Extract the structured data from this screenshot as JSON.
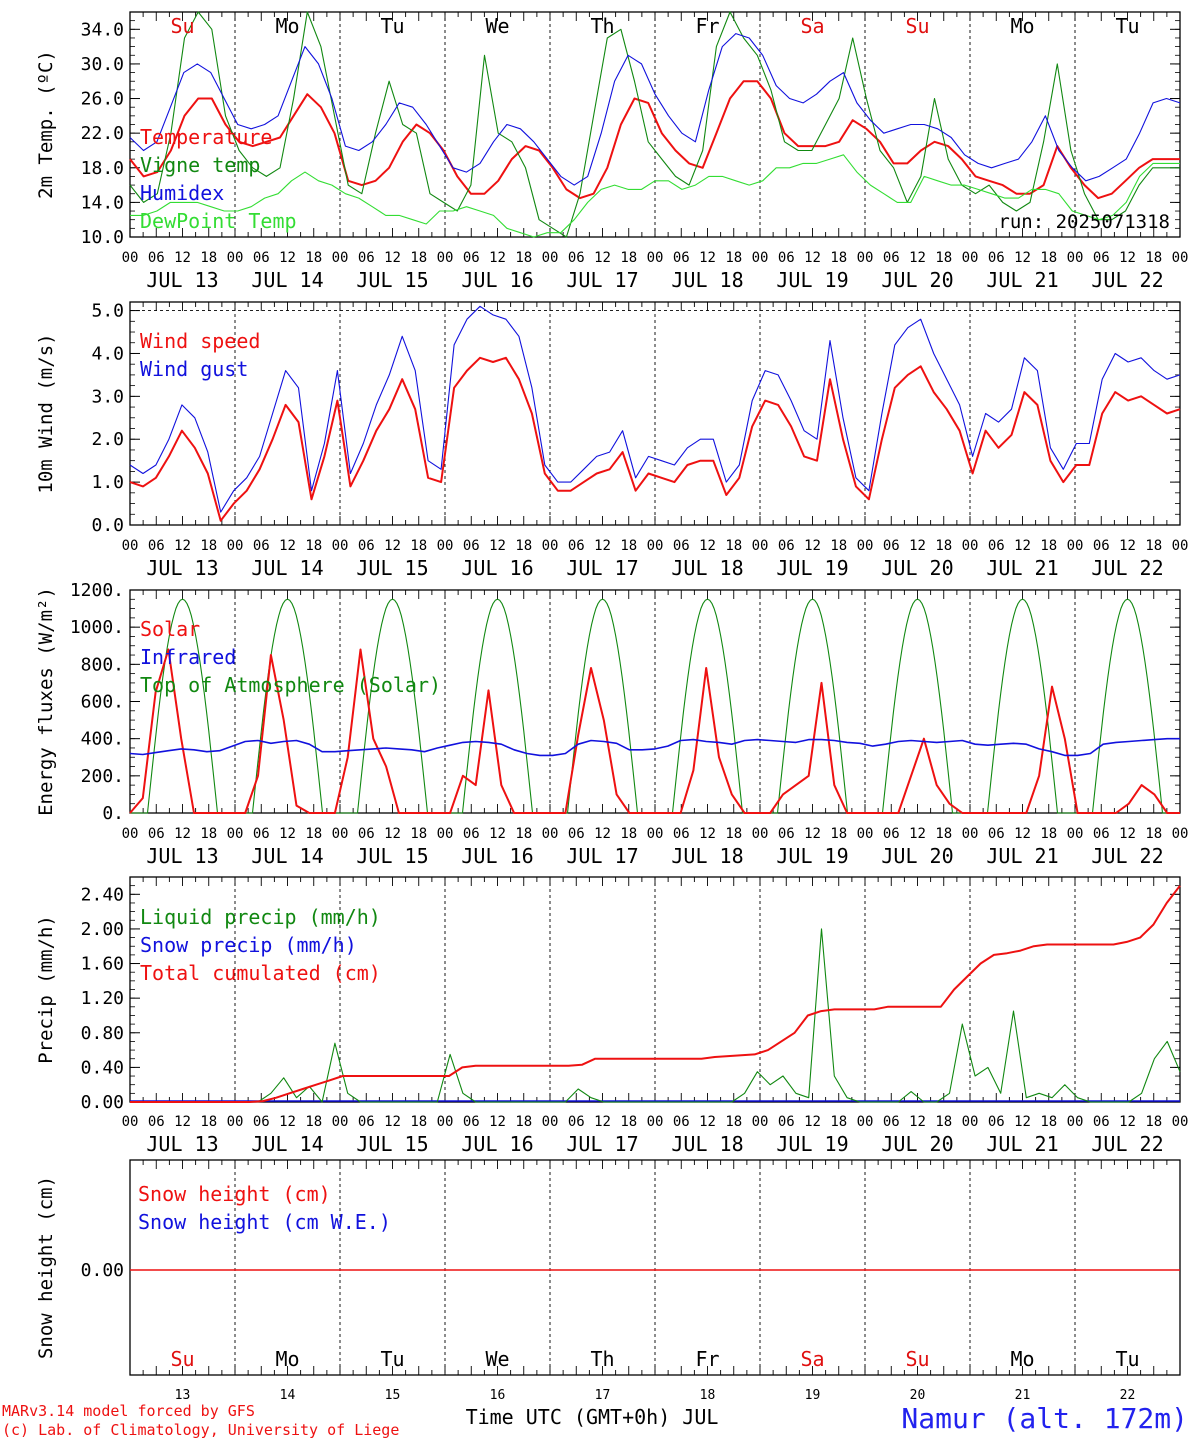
{
  "days": [
    "JUL 13",
    "JUL 14",
    "JUL 15",
    "JUL 16",
    "JUL 17",
    "JUL 18",
    "JUL 19",
    "JUL 20",
    "JUL 21",
    "JUL 22"
  ],
  "dow": [
    {
      "label": "Su",
      "color": "#e01010"
    },
    {
      "label": "Mo",
      "color": "#000000"
    },
    {
      "label": "Tu",
      "color": "#000000"
    },
    {
      "label": "We",
      "color": "#000000"
    },
    {
      "label": "Th",
      "color": "#000000"
    },
    {
      "label": "Fr",
      "color": "#000000"
    },
    {
      "label": "Sa",
      "color": "#e01010"
    },
    {
      "label": "Su",
      "color": "#e01010"
    },
    {
      "label": "Mo",
      "color": "#000000"
    },
    {
      "label": "Tu",
      "color": "#000000"
    }
  ],
  "hour_ticks": [
    "00",
    "06",
    "12",
    "18"
  ],
  "end_tick": "00",
  "bottom_day_numbers": [
    "13",
    "14",
    "15",
    "16",
    "17",
    "18",
    "19",
    "20",
    "21",
    "22"
  ],
  "run_label": "run: 2025071318",
  "footer": {
    "model": "MARv3.14 model forced by GFS",
    "credit": "(c) Lab. of Climatology, University of Liege",
    "xlabel": "Time UTC (GMT+0h) JUL",
    "station": "Namur (alt. 172m)"
  },
  "colors": {
    "red": "#ee1111",
    "green": "#118811",
    "blue": "#1111dd",
    "lightgreen": "#33dd33",
    "station": "#2222ee"
  },
  "chart_data": [
    {
      "type": "line",
      "ylabel": "2m Temp. (ºC)",
      "ylim": [
        10,
        36
      ],
      "yticks": [
        "10.0",
        "14.0",
        "18.0",
        "22.0",
        "26.0",
        "30.0",
        "34.0"
      ],
      "x": "hours since JUL 13 00 UTC, 3-hourly from 0 to 240",
      "series": [
        {
          "name": "Temperature",
          "color": "red",
          "values": [
            19,
            17,
            17.5,
            20,
            24,
            26,
            26,
            23,
            21,
            20.5,
            21,
            21.5,
            24,
            26.5,
            25,
            22,
            16.5,
            16,
            16.5,
            18,
            21,
            23,
            22,
            20,
            17,
            15,
            15,
            16.5,
            19,
            20.5,
            20,
            18,
            15.5,
            14.5,
            15,
            18,
            23,
            26,
            25.5,
            22,
            20,
            18.5,
            18,
            22,
            26,
            28,
            28,
            26,
            22,
            20.5,
            20.5,
            20.5,
            21,
            23.5,
            22.5,
            21,
            18.5,
            18.5,
            20,
            21,
            20.5,
            19,
            17,
            16.5,
            16,
            15,
            15,
            16,
            20.5,
            18,
            16,
            14.5,
            15,
            16.5,
            18,
            19,
            19,
            19
          ]
        },
        {
          "name": "Vigne temp",
          "color": "green",
          "values": [
            16,
            14,
            15,
            22,
            33,
            36,
            34,
            24,
            20,
            18,
            17,
            18,
            26,
            36,
            32,
            24,
            16,
            15,
            22,
            28,
            23,
            22,
            15,
            14,
            13,
            16,
            31,
            22,
            21,
            18,
            12,
            11,
            10,
            15,
            24,
            33,
            34,
            28,
            21,
            19,
            17,
            16,
            20,
            32,
            37,
            33,
            31,
            27,
            21,
            20,
            20,
            23,
            26,
            33,
            26,
            20,
            18,
            14,
            17,
            26,
            19,
            16,
            15,
            16,
            14,
            13,
            14,
            21,
            30,
            20,
            15,
            12,
            12,
            13,
            16,
            18,
            18,
            18
          ]
        },
        {
          "name": "Humidex",
          "color": "blue",
          "values": [
            21.5,
            20,
            21,
            25,
            29,
            30,
            29,
            26,
            23,
            22.5,
            23,
            24,
            28,
            32,
            30,
            26,
            20.5,
            20,
            21,
            23,
            25.5,
            25,
            23,
            20.5,
            18,
            17.5,
            18.5,
            21,
            23,
            22.5,
            21,
            19,
            17,
            16,
            17,
            22,
            28,
            31,
            30,
            26.5,
            24,
            22,
            21,
            27,
            32,
            33.5,
            33,
            31,
            27.5,
            26,
            25.5,
            26.5,
            28,
            29,
            25.5,
            23.5,
            22,
            22.5,
            23,
            23,
            22.5,
            21.5,
            19.5,
            18.5,
            18,
            18.5,
            19,
            21,
            24,
            20,
            18,
            16.5,
            17,
            18,
            19,
            22,
            25.5,
            26,
            25.5
          ]
        },
        {
          "name": "DewPoint Temp",
          "color": "lightgreen",
          "values": [
            12.5,
            12.5,
            13,
            14,
            14,
            14,
            13.5,
            13,
            13,
            13.5,
            14.5,
            15,
            16.5,
            17.5,
            16.5,
            16,
            15,
            14.5,
            13.5,
            12.5,
            12.5,
            12,
            11.5,
            13,
            13,
            13.5,
            13,
            12.5,
            11,
            10.5,
            10,
            10.5,
            10.5,
            12,
            14,
            15.5,
            16,
            15.5,
            15.5,
            16.5,
            16.5,
            15.5,
            16,
            17,
            17,
            16.5,
            16,
            16.5,
            18,
            18,
            18.5,
            18.5,
            19,
            19.5,
            17.5,
            16,
            15,
            14,
            14,
            17,
            16.5,
            16,
            16,
            15.5,
            15,
            14.5,
            14.5,
            15.5,
            15.5,
            15,
            13,
            12.5,
            12,
            12.5,
            14,
            17,
            18.5,
            18.5,
            18.5
          ]
        }
      ]
    },
    {
      "type": "line",
      "ylabel": "10m Wind (m/s)",
      "ylim": [
        0,
        5.2
      ],
      "yticks": [
        "0.0",
        "1.0",
        "2.0",
        "3.0",
        "4.0",
        "5.0"
      ],
      "dashed_reference": 5.0,
      "series": [
        {
          "name": "Wind speed",
          "color": "red",
          "values": [
            1,
            0.9,
            1.1,
            1.6,
            2.2,
            1.8,
            1.2,
            0.1,
            0.5,
            0.8,
            1.3,
            2,
            2.8,
            2.4,
            0.6,
            1.6,
            2.9,
            0.9,
            1.5,
            2.2,
            2.7,
            3.4,
            2.7,
            1.1,
            1,
            3.2,
            3.6,
            3.9,
            3.8,
            3.9,
            3.4,
            2.6,
            1.2,
            0.8,
            0.8,
            1,
            1.2,
            1.3,
            1.7,
            0.8,
            1.2,
            1.1,
            1,
            1.4,
            1.5,
            1.5,
            0.7,
            1.1,
            2.3,
            2.9,
            2.8,
            2.3,
            1.6,
            1.5,
            3.4,
            2,
            0.9,
            0.6,
            2,
            3.2,
            3.5,
            3.7,
            3.1,
            2.7,
            2.2,
            1.2,
            2.2,
            1.8,
            2.1,
            3.1,
            2.8,
            1.5,
            1,
            1.4,
            1.4,
            2.6,
            3.1,
            2.9,
            3,
            2.8,
            2.6,
            2.7
          ]
        },
        {
          "name": "Wind gust",
          "color": "blue",
          "values": [
            1.4,
            1.2,
            1.4,
            2,
            2.8,
            2.5,
            1.7,
            0.3,
            0.8,
            1.1,
            1.6,
            2.6,
            3.6,
            3.2,
            0.8,
            1.9,
            3.6,
            1.2,
            1.9,
            2.8,
            3.5,
            4.4,
            3.6,
            1.5,
            1.3,
            4.2,
            4.8,
            5.1,
            4.9,
            4.8,
            4.4,
            3.2,
            1.4,
            1,
            1,
            1.3,
            1.6,
            1.7,
            2.2,
            1.1,
            1.6,
            1.5,
            1.4,
            1.8,
            2,
            2,
            1,
            1.4,
            2.9,
            3.6,
            3.5,
            2.9,
            2.2,
            2,
            4.3,
            2.5,
            1.1,
            0.8,
            2.6,
            4.2,
            4.6,
            4.8,
            4,
            3.4,
            2.8,
            1.6,
            2.6,
            2.4,
            2.7,
            3.9,
            3.6,
            1.8,
            1.3,
            1.9,
            1.9,
            3.4,
            4,
            3.8,
            3.9,
            3.6,
            3.4,
            3.5
          ]
        }
      ]
    },
    {
      "type": "line",
      "ylabel": "Energy fluxes (W/m²)",
      "ylim": [
        0,
        1200
      ],
      "yticks": [
        "0.",
        "200.",
        "400.",
        "600.",
        "800.",
        "1000.",
        "1200."
      ],
      "series": [
        {
          "name": "Solar",
          "color": "red",
          "values": [
            0,
            80,
            650,
            880,
            400,
            0,
            0,
            0,
            0,
            0,
            200,
            850,
            500,
            40,
            0,
            0,
            0,
            300,
            880,
            400,
            250,
            0,
            0,
            0,
            0,
            0,
            200,
            150,
            660,
            150,
            0,
            0,
            0,
            0,
            0,
            420,
            780,
            500,
            100,
            0,
            0,
            0,
            0,
            0,
            230,
            780,
            300,
            100,
            0,
            0,
            0,
            100,
            150,
            200,
            700,
            150,
            0,
            0,
            0,
            0,
            0,
            200,
            400,
            150,
            50,
            0,
            0,
            0,
            0,
            0,
            0,
            200,
            680,
            400,
            0,
            0,
            0,
            0,
            50,
            150,
            100,
            0,
            0
          ]
        },
        {
          "name": "Infrared",
          "color": "blue",
          "values": [
            320,
            315,
            325,
            335,
            345,
            340,
            330,
            335,
            360,
            385,
            390,
            375,
            385,
            390,
            370,
            330,
            330,
            335,
            340,
            345,
            350,
            345,
            340,
            330,
            350,
            365,
            380,
            385,
            380,
            370,
            340,
            320,
            310,
            310,
            320,
            370,
            390,
            385,
            375,
            340,
            340,
            345,
            360,
            390,
            395,
            385,
            380,
            370,
            390,
            395,
            390,
            385,
            380,
            395,
            395,
            390,
            380,
            375,
            360,
            370,
            385,
            390,
            385,
            380,
            385,
            390,
            370,
            365,
            370,
            375,
            370,
            345,
            330,
            310,
            310,
            320,
            370,
            380,
            385,
            390,
            395,
            400,
            400
          ]
        },
        {
          "name": "Top of Atmosphere (Solar)",
          "color": "green",
          "values": "daily half-sine 04–20 UTC, peak 1150"
        }
      ]
    },
    {
      "type": "line",
      "ylabel": "Precip (mm/h)",
      "ylim": [
        0,
        2.6
      ],
      "yticks": [
        "0.00",
        "0.40",
        "0.80",
        "1.20",
        "1.60",
        "2.00",
        "2.40"
      ],
      "series": [
        {
          "name": "Liquid precip (mm/h)",
          "color": "green",
          "values": [
            0,
            0,
            0,
            0,
            0,
            0,
            0,
            0,
            0,
            0,
            0,
            0.1,
            0.28,
            0.05,
            0.18,
            0,
            0.68,
            0.1,
            0,
            0,
            0,
            0,
            0,
            0,
            0,
            0.55,
            0.1,
            0,
            0,
            0,
            0,
            0,
            0,
            0,
            0,
            0.15,
            0.05,
            0,
            0,
            0,
            0,
            0,
            0,
            0,
            0,
            0,
            0,
            0,
            0.1,
            0.35,
            0.2,
            0.3,
            0.1,
            0.05,
            2,
            0.3,
            0.05,
            0,
            0,
            0,
            0,
            0.12,
            0,
            0,
            0.1,
            0.9,
            0.3,
            0.4,
            0.1,
            1.05,
            0.05,
            0.1,
            0.05,
            0.2,
            0.05,
            0,
            0,
            0,
            0,
            0.1,
            0.5,
            0.7,
            0.35
          ]
        },
        {
          "name": "Snow precip (mm/h)",
          "color": "blue",
          "values": "0.00 throughout"
        },
        {
          "name": "Total cumulated (cm)",
          "color": "red",
          "values": [
            0,
            0,
            0,
            0,
            0,
            0,
            0,
            0,
            0,
            0,
            0.01,
            0.05,
            0.1,
            0.15,
            0.2,
            0.25,
            0.3,
            0.3,
            0.3,
            0.3,
            0.3,
            0.3,
            0.3,
            0.3,
            0.3,
            0.4,
            0.42,
            0.42,
            0.42,
            0.42,
            0.42,
            0.42,
            0.42,
            0.42,
            0.43,
            0.5,
            0.5,
            0.5,
            0.5,
            0.5,
            0.5,
            0.5,
            0.5,
            0.5,
            0.52,
            0.53,
            0.54,
            0.55,
            0.6,
            0.7,
            0.8,
            1,
            1.05,
            1.07,
            1.07,
            1.07,
            1.07,
            1.1,
            1.1,
            1.1,
            1.1,
            1.1,
            1.3,
            1.45,
            1.6,
            1.7,
            1.72,
            1.75,
            1.8,
            1.82,
            1.82,
            1.82,
            1.82,
            1.82,
            1.82,
            1.85,
            1.9,
            2.05,
            2.3,
            2.5
          ]
        }
      ]
    },
    {
      "type": "line",
      "ylabel": "Snow height (cm)",
      "yticks": [
        "0.00"
      ],
      "series": [
        {
          "name": "Snow height (cm)",
          "color": "red",
          "values": "0.00 throughout"
        },
        {
          "name": "Snow height (cm W.E.)",
          "color": "blue",
          "values": "0.00 throughout"
        }
      ]
    }
  ]
}
